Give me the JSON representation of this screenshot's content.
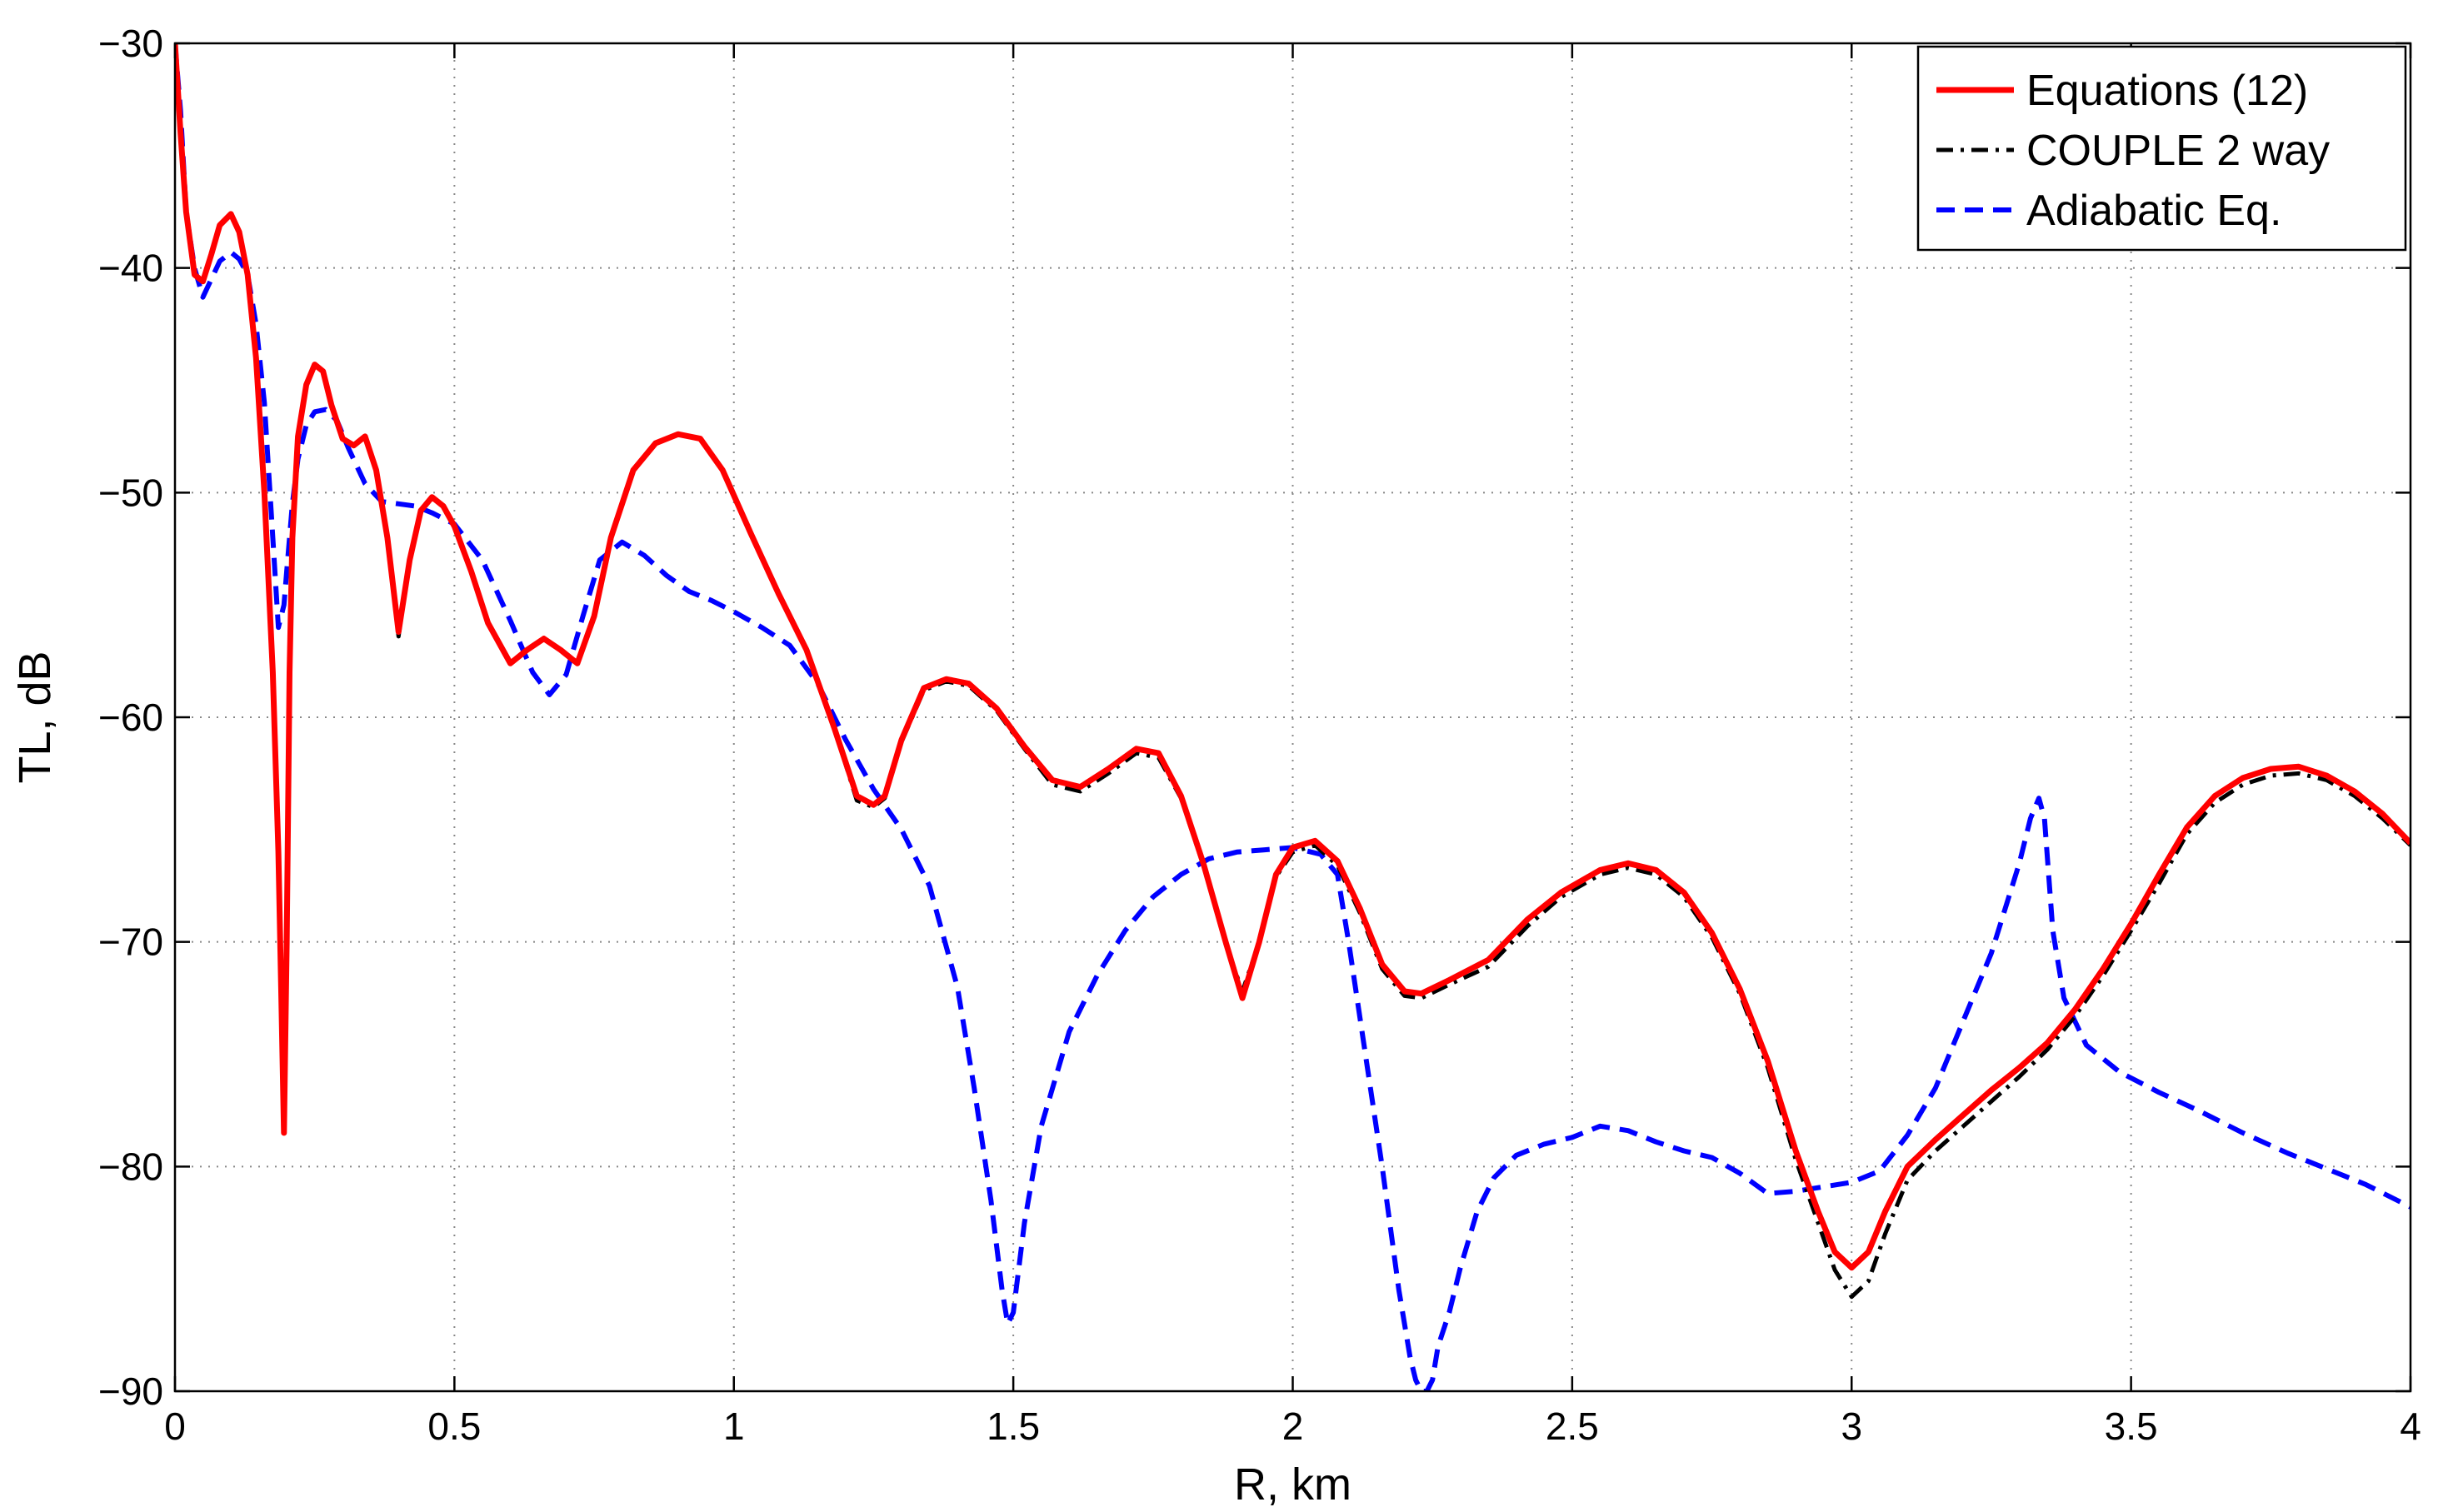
{
  "chart_data": {
    "type": "line",
    "title": "",
    "xlabel": "R, km",
    "ylabel": "TL, dB",
    "xlim": [
      0,
      4
    ],
    "ylim": [
      -90,
      -30
    ],
    "xticks": [
      0,
      0.5,
      1,
      1.5,
      2,
      2.5,
      3,
      3.5,
      4
    ],
    "xtick_labels": [
      "0",
      "0.5",
      "1",
      "1.5",
      "2",
      "2.5",
      "3",
      "3.5",
      "4"
    ],
    "yticks": [
      -90,
      -80,
      -70,
      -60,
      -50,
      -40,
      -30
    ],
    "ytick_labels": [
      "−90",
      "−80",
      "−70",
      "−60",
      "−50",
      "−40",
      "−30"
    ],
    "grid": true,
    "legend_position": "top-right",
    "series": [
      {
        "name": "Equations (12)",
        "color": "#ff0000",
        "style": "solid",
        "x": [
          0.0,
          0.01,
          0.02,
          0.035,
          0.05,
          0.065,
          0.08,
          0.1,
          0.115,
          0.13,
          0.145,
          0.16,
          0.175,
          0.185,
          0.19,
          0.195,
          0.2,
          0.205,
          0.21,
          0.22,
          0.235,
          0.25,
          0.265,
          0.28,
          0.3,
          0.32,
          0.34,
          0.36,
          0.38,
          0.4,
          0.42,
          0.44,
          0.46,
          0.48,
          0.5,
          0.53,
          0.56,
          0.6,
          0.63,
          0.66,
          0.69,
          0.72,
          0.75,
          0.78,
          0.82,
          0.86,
          0.9,
          0.94,
          0.98,
          1.03,
          1.08,
          1.13,
          1.18,
          1.22,
          1.25,
          1.27,
          1.3,
          1.34,
          1.38,
          1.42,
          1.47,
          1.52,
          1.57,
          1.62,
          1.67,
          1.72,
          1.76,
          1.8,
          1.84,
          1.88,
          1.91,
          1.94,
          1.97,
          2.0,
          2.04,
          2.08,
          2.12,
          2.16,
          2.2,
          2.23,
          2.28,
          2.35,
          2.42,
          2.48,
          2.55,
          2.6,
          2.65,
          2.7,
          2.75,
          2.8,
          2.85,
          2.9,
          2.94,
          2.97,
          3.0,
          3.03,
          3.06,
          3.1,
          3.15,
          3.2,
          3.25,
          3.3,
          3.35,
          3.4,
          3.45,
          3.5,
          3.55,
          3.6,
          3.65,
          3.7,
          3.75,
          3.8,
          3.85,
          3.9,
          3.95,
          4.0
        ],
        "y": [
          -30.0,
          -34.0,
          -37.5,
          -40.3,
          -40.6,
          -39.4,
          -38.1,
          -37.6,
          -38.4,
          -40.3,
          -44.0,
          -50.0,
          -58.0,
          -66.0,
          -72.0,
          -78.5,
          -70.0,
          -58.0,
          -52.0,
          -47.5,
          -45.2,
          -44.3,
          -44.6,
          -46.1,
          -47.6,
          -47.9,
          -47.5,
          -49.0,
          -52.0,
          -56.2,
          -53.0,
          -50.8,
          -50.2,
          -50.6,
          -51.5,
          -53.5,
          -55.8,
          -57.6,
          -57.0,
          -56.5,
          -57.0,
          -57.6,
          -55.5,
          -52.0,
          -49.0,
          -47.8,
          -47.4,
          -47.6,
          -49.0,
          -51.8,
          -54.5,
          -57.0,
          -60.5,
          -63.5,
          -63.9,
          -63.5,
          -61.0,
          -58.7,
          -58.3,
          -58.5,
          -59.6,
          -61.3,
          -62.8,
          -63.1,
          -62.3,
          -61.4,
          -61.6,
          -63.5,
          -66.5,
          -70.0,
          -72.5,
          -70.0,
          -67.0,
          -65.8,
          -65.5,
          -66.4,
          -68.5,
          -71.0,
          -72.2,
          -72.3,
          -71.7,
          -70.8,
          -69.0,
          -67.8,
          -66.8,
          -66.5,
          -66.8,
          -67.8,
          -69.6,
          -72.1,
          -75.3,
          -79.3,
          -82.0,
          -83.8,
          -84.5,
          -83.8,
          -82.0,
          -80.0,
          -78.8,
          -77.7,
          -76.6,
          -75.6,
          -74.5,
          -73.0,
          -71.2,
          -69.2,
          -67.0,
          -64.9,
          -63.5,
          -62.7,
          -62.3,
          -62.2,
          -62.6,
          -63.3,
          -64.3,
          -65.6
        ]
      },
      {
        "name": "COUPLE 2 way",
        "color": "#000000",
        "style": "dashdot",
        "x": [
          0.0,
          0.01,
          0.02,
          0.035,
          0.05,
          0.065,
          0.08,
          0.1,
          0.115,
          0.13,
          0.145,
          0.16,
          0.175,
          0.185,
          0.19,
          0.195,
          0.2,
          0.205,
          0.21,
          0.22,
          0.235,
          0.25,
          0.265,
          0.28,
          0.3,
          0.32,
          0.34,
          0.36,
          0.38,
          0.4,
          0.42,
          0.44,
          0.46,
          0.48,
          0.5,
          0.53,
          0.56,
          0.6,
          0.63,
          0.66,
          0.69,
          0.72,
          0.75,
          0.78,
          0.82,
          0.86,
          0.9,
          0.94,
          0.98,
          1.03,
          1.08,
          1.13,
          1.18,
          1.22,
          1.25,
          1.27,
          1.3,
          1.34,
          1.38,
          1.42,
          1.47,
          1.52,
          1.57,
          1.62,
          1.67,
          1.72,
          1.76,
          1.8,
          1.84,
          1.88,
          1.91,
          1.94,
          1.97,
          2.0,
          2.04,
          2.08,
          2.12,
          2.16,
          2.2,
          2.23,
          2.28,
          2.35,
          2.42,
          2.48,
          2.55,
          2.6,
          2.65,
          2.7,
          2.75,
          2.8,
          2.85,
          2.9,
          2.94,
          2.97,
          3.0,
          3.03,
          3.06,
          3.1,
          3.15,
          3.2,
          3.25,
          3.3,
          3.35,
          3.4,
          3.45,
          3.5,
          3.55,
          3.6,
          3.65,
          3.7,
          3.75,
          3.8,
          3.85,
          3.9,
          3.95,
          4.0
        ],
        "y": [
          -30.0,
          -34.0,
          -37.5,
          -40.3,
          -40.6,
          -39.4,
          -38.1,
          -37.6,
          -38.4,
          -40.3,
          -44.0,
          -50.0,
          -58.0,
          -66.0,
          -72.0,
          -77.5,
          -70.0,
          -58.0,
          -52.0,
          -47.5,
          -45.2,
          -44.3,
          -44.6,
          -46.1,
          -47.6,
          -47.9,
          -47.5,
          -49.0,
          -52.0,
          -56.4,
          -53.0,
          -50.8,
          -50.2,
          -50.6,
          -51.5,
          -53.5,
          -55.8,
          -57.6,
          -57.0,
          -56.5,
          -57.0,
          -57.6,
          -55.5,
          -52.0,
          -49.0,
          -47.8,
          -47.4,
          -47.6,
          -49.0,
          -51.8,
          -54.5,
          -57.0,
          -60.5,
          -63.7,
          -64.0,
          -63.6,
          -61.1,
          -58.8,
          -58.4,
          -58.6,
          -59.7,
          -61.4,
          -63.0,
          -63.3,
          -62.5,
          -61.6,
          -61.8,
          -63.6,
          -66.6,
          -70.1,
          -72.2,
          -70.0,
          -67.1,
          -66.0,
          -65.7,
          -66.6,
          -68.7,
          -71.2,
          -72.4,
          -72.5,
          -71.9,
          -71.1,
          -69.3,
          -68.0,
          -67.0,
          -66.7,
          -67.0,
          -68.0,
          -69.8,
          -72.3,
          -75.6,
          -79.7,
          -82.5,
          -84.6,
          -85.8,
          -85.1,
          -83.0,
          -80.6,
          -79.3,
          -78.2,
          -77.1,
          -76.0,
          -74.8,
          -73.3,
          -71.5,
          -69.5,
          -67.4,
          -65.2,
          -63.8,
          -63.0,
          -62.6,
          -62.5,
          -62.8,
          -63.5,
          -64.5,
          -65.7
        ]
      },
      {
        "name": "Adiabatic Eq.",
        "color": "#0000ff",
        "style": "dashed",
        "x": [
          0.0,
          0.01,
          0.02,
          0.035,
          0.05,
          0.065,
          0.08,
          0.1,
          0.115,
          0.13,
          0.145,
          0.16,
          0.175,
          0.185,
          0.195,
          0.2,
          0.21,
          0.22,
          0.235,
          0.25,
          0.27,
          0.29,
          0.31,
          0.34,
          0.37,
          0.4,
          0.43,
          0.46,
          0.5,
          0.55,
          0.6,
          0.64,
          0.67,
          0.7,
          0.73,
          0.76,
          0.8,
          0.84,
          0.88,
          0.92,
          0.96,
          1.0,
          1.05,
          1.1,
          1.15,
          1.2,
          1.25,
          1.3,
          1.35,
          1.4,
          1.43,
          1.46,
          1.48,
          1.49,
          1.5,
          1.52,
          1.55,
          1.6,
          1.65,
          1.7,
          1.75,
          1.8,
          1.85,
          1.9,
          1.95,
          2.0,
          2.05,
          2.08,
          2.1,
          2.13,
          2.16,
          2.19,
          2.21,
          2.22,
          2.23,
          2.24,
          2.25,
          2.26,
          2.28,
          2.3,
          2.33,
          2.36,
          2.4,
          2.45,
          2.5,
          2.55,
          2.6,
          2.65,
          2.7,
          2.75,
          2.8,
          2.85,
          2.9,
          2.95,
          3.0,
          3.05,
          3.1,
          3.15,
          3.2,
          3.25,
          3.3,
          3.32,
          3.335,
          3.345,
          3.36,
          3.38,
          3.42,
          3.48,
          3.55,
          3.62,
          3.7,
          3.78,
          3.85,
          3.92,
          4.0
        ],
        "y": [
          -30.0,
          -33.0,
          -37.5,
          -40.0,
          -41.3,
          -40.5,
          -39.7,
          -39.3,
          -39.6,
          -40.3,
          -42.5,
          -46.0,
          -52.0,
          -56.0,
          -55.0,
          -53.5,
          -50.5,
          -48.5,
          -47.0,
          -46.4,
          -46.3,
          -46.8,
          -48.0,
          -49.6,
          -50.4,
          -50.5,
          -50.6,
          -50.9,
          -51.4,
          -53.0,
          -55.7,
          -58.0,
          -59.0,
          -58.1,
          -55.5,
          -53.0,
          -52.2,
          -52.8,
          -53.7,
          -54.4,
          -54.8,
          -55.3,
          -56.0,
          -56.8,
          -58.5,
          -61.0,
          -63.2,
          -65.0,
          -67.5,
          -72.0,
          -76.5,
          -81.5,
          -85.5,
          -87.0,
          -86.5,
          -82.5,
          -78.2,
          -74.0,
          -71.5,
          -69.5,
          -68.0,
          -67.0,
          -66.3,
          -66.0,
          -65.9,
          -65.8,
          -66.1,
          -67.0,
          -70.0,
          -75.0,
          -80.0,
          -85.5,
          -88.5,
          -89.5,
          -90.0,
          -90.0,
          -89.5,
          -88.0,
          -86.5,
          -84.5,
          -82.0,
          -80.5,
          -79.5,
          -79.0,
          -78.7,
          -78.2,
          -78.4,
          -78.9,
          -79.3,
          -79.6,
          -80.3,
          -81.2,
          -81.1,
          -80.9,
          -80.7,
          -80.2,
          -78.6,
          -76.5,
          -73.5,
          -70.5,
          -66.5,
          -64.5,
          -63.6,
          -64.5,
          -69.5,
          -72.5,
          -74.6,
          -75.8,
          -76.7,
          -77.5,
          -78.5,
          -79.4,
          -80.1,
          -80.8,
          -81.8
        ]
      }
    ]
  }
}
